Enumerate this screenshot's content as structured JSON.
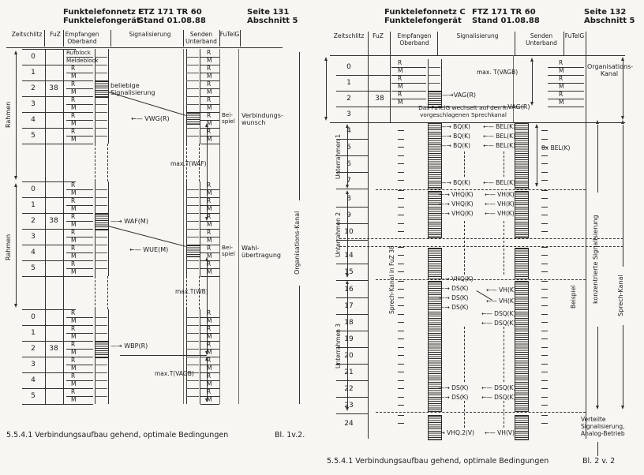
{
  "pages": [
    {
      "header": {
        "org1": "Funktelefonnetz C",
        "org2": "Funktelefongerät",
        "doc1": "FTZ 171 TR 60",
        "doc2": "Stand 01.08.88",
        "page": "Seite 131",
        "section": "Abschnitt 5"
      },
      "columns": {
        "zeitschlitz": "Zeitschlitz",
        "fuz": "FuZ",
        "empfangen": "Empfangen\nOberband",
        "signalisierung": "Signalisierung",
        "senden": "Senden\nUnterband",
        "futelg": "FuTelG"
      },
      "caption": "5.5.4.1 Verbindungsaufbau gehend, optimale Bedingungen",
      "sheet": "Bl. 1v.2."
    },
    {
      "header": {
        "org1": "Funktelefonnetz C",
        "org2": "Funktelefongerät",
        "doc1": "FTZ 171 TR 60",
        "doc2": "Stand 01.08.88",
        "page": "Seite 132",
        "section": "Abschnitt 5"
      },
      "columns": {
        "zeitschlitz": "Zeitschlitz",
        "fuz": "FuZ",
        "empfangen": "Empfangen\nOberband",
        "signalisierung": "Signalisierung",
        "senden": "Senden\nUnterband",
        "futelg": "FuTelG"
      },
      "caption": "5.5.4.1 Verbindungsaufbau gehend, optimale Bedingungen",
      "sheet": "Bl. 2 v. 2"
    }
  ],
  "left_diagram": {
    "frame_label": "Rahmen",
    "slots": [
      "0",
      "1",
      "2",
      "3",
      "4",
      "5"
    ],
    "fuz_value": "38",
    "first_slot": [
      "Rufblock",
      "Meldeblock"
    ],
    "rm": [
      "R",
      "M"
    ],
    "side_label": "Organisations-Kanal",
    "ann": {
      "beliebige": "beliebige\nSignalisierung",
      "vwg": "←— VWG(R)",
      "beispiel": "Bei-\nspiel",
      "verbindungswunsch": "Verbindungs-\nwunsch",
      "max_twaf": "max.T(WAF)",
      "waf": "—→ WAF(M)",
      "wue": "←— WUE(M)",
      "wahl": "Wahl-\nübertragung",
      "max_twb": "max.T(WB)",
      "wbp": "—→ WBP(R)",
      "max_tvagb": "max.T(VAGB)"
    }
  },
  "right_diagram": {
    "slots": [
      "0",
      "1",
      "2",
      "3",
      "4",
      "5",
      "6",
      "7",
      "8",
      "9",
      "10",
      "14",
      "15",
      "16",
      "17",
      "18",
      "19",
      "20",
      "21",
      "22",
      "23",
      "24"
    ],
    "fuz_value": "38",
    "rm": [
      "R",
      "M"
    ],
    "unterrahmen": [
      "Unterrahmen 1",
      "Unterrahmen 2",
      "Unterrahmen 3"
    ],
    "sprechkanal_col": "Sprech-Kanal in FuZ 38",
    "row3_text": "Das FuTelG wechselt auf den in\nvorgeschlagenen Sprechkanal",
    "org_kanal": "Organisations-\nKanal",
    "max_tvagb": "max. T(VAGB)",
    "vag": "—→VAG(R)",
    "vag2": "—→ VAG(R)",
    "bq": "—→ BQ(K)",
    "bel": "←— BEL(K)",
    "bel8": "8x BEL(K)",
    "vhq": "—→ VHQ(K)",
    "vh": "←— VH(K)",
    "ds": "—→ DS(K)",
    "dsq": "←— DSQ(K)",
    "vhq2": "—→ VHQ.2(V)",
    "vhv": "←— VH(V)",
    "beispiel": "Beispiel",
    "konzentrierte": "konzentrierte Signalisierung",
    "sprech_kanal": "Sprech-Kanal",
    "verteilte": "Verteilte\nSignalisierung,\nAnalog-Betrieb"
  }
}
